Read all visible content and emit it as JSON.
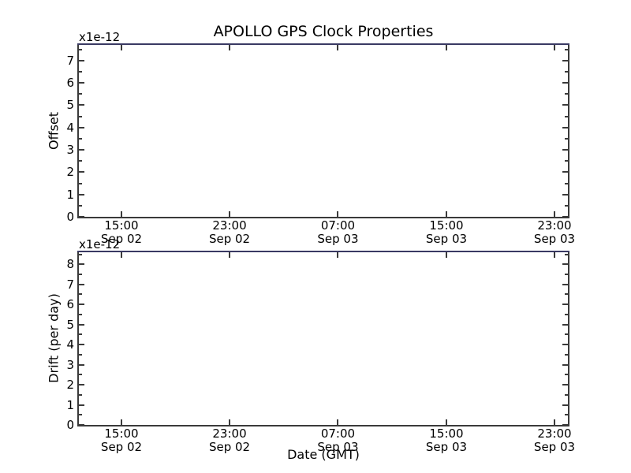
{
  "figure": {
    "title": "APOLLO GPS Clock Properties",
    "xlabel": "Date (GMT)",
    "background_color": "#ffffff",
    "text_color": "#000000",
    "spine_color": "#3a3a3a",
    "top_edge_line_color": "#3a3a63"
  },
  "chart_data": [
    {
      "type": "line",
      "subplot": "top",
      "title": "APOLLO GPS Clock Properties",
      "ylabel": "Offset",
      "y_scale_label": "x1e-12",
      "ylim_x1e12": [
        0,
        7.7
      ],
      "yticks": [
        0,
        1,
        2,
        3,
        4,
        5,
        6,
        7
      ],
      "y_minor_step": 0.5,
      "grid": "off",
      "tick_direction": "in",
      "xticks": [
        {
          "time": "15:00",
          "date": "Sep 02",
          "f": 0.0871
        },
        {
          "time": "23:00",
          "date": "Sep 02",
          "f": 0.3081
        },
        {
          "time": "07:00",
          "date": "Sep 03",
          "f": 0.5298
        },
        {
          "time": "15:00",
          "date": "Sep 03",
          "f": 0.7516
        },
        {
          "time": "23:00",
          "date": "Sep 03",
          "f": 0.9726
        }
      ],
      "series": [
        {
          "name": "Offset",
          "color_on_plot": "#3a3a63",
          "shape": "flat horizontal line along top axis edge (clipped at axis maximum)",
          "approx_values_x1e12": [
            7.7,
            7.7,
            7.7,
            7.7,
            7.7
          ]
        }
      ]
    },
    {
      "type": "line",
      "subplot": "bottom",
      "ylabel": "Drift (per day)",
      "y_scale_label": "x1e-12",
      "ylim_x1e12": [
        0,
        8.6
      ],
      "yticks": [
        0,
        1,
        2,
        3,
        4,
        5,
        6,
        7,
        8
      ],
      "y_minor_step": 0.5,
      "grid": "off",
      "tick_direction": "in",
      "xticks": [
        {
          "time": "15:00",
          "date": "Sep 02",
          "f": 0.0871
        },
        {
          "time": "23:00",
          "date": "Sep 02",
          "f": 0.3081
        },
        {
          "time": "07:00",
          "date": "Sep 03",
          "f": 0.5298
        },
        {
          "time": "15:00",
          "date": "Sep 03",
          "f": 0.7516
        },
        {
          "time": "23:00",
          "date": "Sep 03",
          "f": 0.9726
        }
      ],
      "series": [
        {
          "name": "Drift (per day)",
          "color_on_plot": "#3a3a63",
          "shape": "flat horizontal line along top axis edge (clipped at axis maximum)",
          "approx_values_x1e12": [
            8.6,
            8.6,
            8.6,
            8.6,
            8.6
          ]
        }
      ]
    }
  ]
}
